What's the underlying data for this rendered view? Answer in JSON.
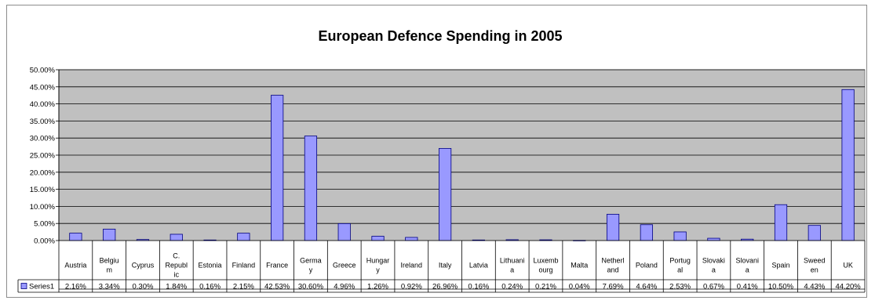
{
  "chart_data": {
    "type": "bar",
    "title": "European Defence Spending in 2005",
    "xlabel": "",
    "ylabel": "",
    "ylim": [
      0,
      50
    ],
    "yticks": [
      "0.00%",
      "5.00%",
      "10.00%",
      "15.00%",
      "20.00%",
      "25.00%",
      "30.00%",
      "35.00%",
      "40.00%",
      "45.00%",
      "50.00%"
    ],
    "grid": true,
    "legend": "data-table",
    "categories": [
      {
        "name": "Austria",
        "lines": [
          "Austria"
        ]
      },
      {
        "name": "Belgium",
        "lines": [
          "Belgiu",
          "m"
        ]
      },
      {
        "name": "Cyprus",
        "lines": [
          "Cyprus"
        ]
      },
      {
        "name": "C. Republic",
        "lines": [
          "C.",
          "Republ",
          "ic"
        ]
      },
      {
        "name": "Estonia",
        "lines": [
          "Estonia"
        ]
      },
      {
        "name": "Finland",
        "lines": [
          "Finland"
        ]
      },
      {
        "name": "France",
        "lines": [
          "France"
        ]
      },
      {
        "name": "Germany",
        "lines": [
          "Germa",
          "y"
        ]
      },
      {
        "name": "Greece",
        "lines": [
          "Greece"
        ]
      },
      {
        "name": "Hungary",
        "lines": [
          "Hungar",
          "y"
        ]
      },
      {
        "name": "Ireland",
        "lines": [
          "Ireland"
        ]
      },
      {
        "name": "Italy",
        "lines": [
          "Italy"
        ]
      },
      {
        "name": "Latvia",
        "lines": [
          "Latvia"
        ]
      },
      {
        "name": "Lithuania",
        "lines": [
          "Lithuani",
          "a"
        ]
      },
      {
        "name": "Luxembourg",
        "lines": [
          "Luxemb",
          "ourg"
        ]
      },
      {
        "name": "Malta",
        "lines": [
          "Malta"
        ]
      },
      {
        "name": "Netherland",
        "lines": [
          "Netherl",
          "and"
        ]
      },
      {
        "name": "Poland",
        "lines": [
          "Poland"
        ]
      },
      {
        "name": "Portugal",
        "lines": [
          "Portug",
          "al"
        ]
      },
      {
        "name": "Slovakia",
        "lines": [
          "Slovaki",
          "a"
        ]
      },
      {
        "name": "Slovania",
        "lines": [
          "Slovani",
          "a"
        ]
      },
      {
        "name": "Spain",
        "lines": [
          "Spain"
        ]
      },
      {
        "name": "Sweeden",
        "lines": [
          "Sweed",
          "en"
        ]
      },
      {
        "name": "UK",
        "lines": [
          "UK"
        ]
      }
    ],
    "series": [
      {
        "name": "Series1",
        "color": "#9999ff",
        "values": [
          2.16,
          3.34,
          0.3,
          1.84,
          0.16,
          2.15,
          42.53,
          30.6,
          4.96,
          1.26,
          0.92,
          26.96,
          0.16,
          0.24,
          0.21,
          0.04,
          7.69,
          4.64,
          2.53,
          0.67,
          0.41,
          10.5,
          4.43,
          44.2
        ],
        "labels": [
          "2.16%",
          "3.34%",
          "0.30%",
          "1.84%",
          "0.16%",
          "2.15%",
          "42.53%",
          "30.60%",
          "4.96%",
          "1.26%",
          "0.92%",
          "26.96%",
          "0.16%",
          "0.24%",
          "0.21%",
          "0.04%",
          "7.69%",
          "4.64%",
          "2.53%",
          "0.67%",
          "0.41%",
          "10.50%",
          "4.43%",
          "44.20%"
        ]
      }
    ],
    "colors": {
      "plot_background": "#c0c0c0",
      "bar_fill": "#9999ff",
      "bar_stroke": "#000080",
      "gridline": "#000000"
    }
  }
}
